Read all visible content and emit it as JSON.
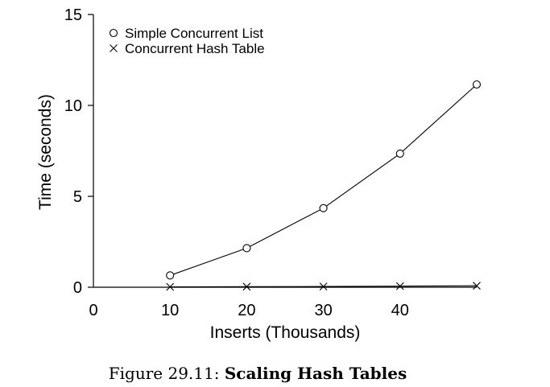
{
  "chart_data": {
    "type": "line",
    "xlabel": "Inserts (Thousands)",
    "ylabel": "Time (seconds)",
    "xlim": [
      0,
      50
    ],
    "ylim": [
      0,
      15
    ],
    "x_ticks": [
      0,
      10,
      20,
      30,
      40
    ],
    "y_ticks": [
      0,
      5,
      10,
      15
    ],
    "grid": false,
    "legend_position": "top-left",
    "x": [
      10,
      20,
      30,
      40,
      50
    ],
    "series": [
      {
        "name": "Simple Concurrent List",
        "marker": "circle",
        "values": [
          0.65,
          2.15,
          4.35,
          7.35,
          11.15
        ]
      },
      {
        "name": "Concurrent Hash Table",
        "marker": "cross",
        "values": [
          0.02,
          0.03,
          0.04,
          0.06,
          0.08
        ]
      }
    ]
  },
  "caption": {
    "prefix": "Figure 29.11:",
    "title": "Scaling Hash Tables"
  }
}
